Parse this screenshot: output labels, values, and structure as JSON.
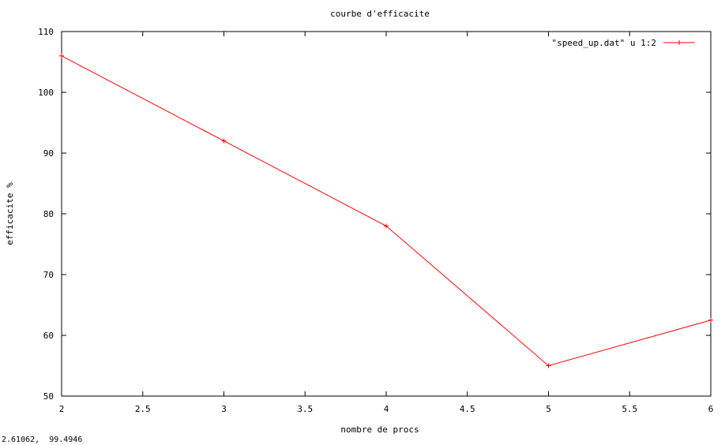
{
  "chart_data": {
    "type": "line",
    "title": "courbe d'efficacite",
    "xlabel": "nombre de procs",
    "ylabel": "efficacite %",
    "xlim": [
      2,
      6
    ],
    "ylim": [
      50,
      110
    ],
    "xticks": [
      2,
      2.5,
      3,
      3.5,
      4,
      4.5,
      5,
      5.5,
      6
    ],
    "xtick_labels": [
      "2",
      "2.5",
      "3",
      "3.5",
      "4",
      "4.5",
      "5",
      "5.5",
      "6"
    ],
    "yticks": [
      50,
      60,
      70,
      80,
      90,
      100,
      110
    ],
    "ytick_labels": [
      "50",
      "60",
      "70",
      "80",
      "90",
      "100",
      "110"
    ],
    "grid": false,
    "legend_position": "top-right",
    "series": [
      {
        "name": "\"speed_up.dat\" u 1:2",
        "color": "#ff0000",
        "marker": "plus",
        "x": [
          2,
          3,
          4,
          5,
          6
        ],
        "y": [
          106,
          92,
          78,
          55,
          62.5
        ]
      }
    ]
  },
  "coord_readout": "2.61062,  99.4946"
}
